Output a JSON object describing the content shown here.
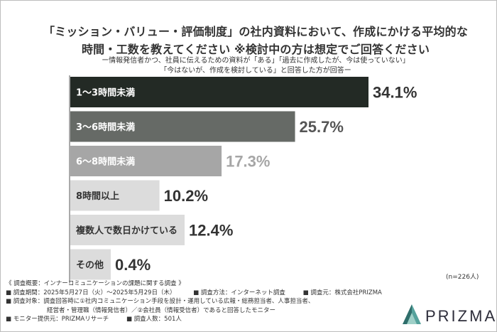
{
  "title": "「ミッション・バリュー・評価制度」の社内資料において、作成にかける平均的な\n時間・工数を教えてください ※検討中の方は想定でご回答ください",
  "subtitle": "ー情報発信者かつ、社員に伝えるための資料が「ある」「過去に作成したが、今は使っていない」\n「今はないが、作成を検討している」と回答した方が回答ー",
  "chart_data": {
    "type": "bar",
    "orientation": "horizontal",
    "categories": [
      "1〜3時間未満",
      "3〜6時間未満",
      "6〜8時間未満",
      "8時間以上",
      "複数人で数日かけている",
      "その他"
    ],
    "values": [
      34.1,
      25.7,
      17.3,
      10.2,
      12.4,
      0.4
    ],
    "value_labels": [
      "34.1%",
      "25.7%",
      "17.3%",
      "10.2%",
      "12.4%",
      "0.4%"
    ],
    "bar_colors": [
      "#232a25",
      "#666a66",
      "#a6a6a6",
      "#dcdcdc",
      "#dcdcdc",
      "#dcdcdc"
    ],
    "label_colors": [
      "#ffffff",
      "#ffffff",
      "#ffffff",
      "#333333",
      "#333333",
      "#333333"
    ],
    "value_colors": [
      "#333333",
      "#555555",
      "#a6a6a6",
      "#333333",
      "#333333",
      "#333333"
    ],
    "xlim": [
      0,
      34.1
    ]
  },
  "sample_size": "(n=226人)",
  "footer": {
    "overview": "《 調査概要：インナーコミュニケーションの課題に関する調査 》",
    "period": "■ 調査期間：2025年5月27日（火）〜2025年5月29日（木）",
    "method": "■ 調査方法：インターネット調査",
    "source": "■ 調査元：株式会社PRIZMA",
    "target_1": "■ 調査対象：調査回答時に①社内コミュニケーション手段を設計・運用している広報・総務担当者、人事担当者、",
    "target_2": "経営者・管理職（情報発信者）／②会社員（情報受信者）であると回答したモニター",
    "provider": "■ モニター提供元：PRIZMAリサーチ",
    "respondents": "■ 調査人数：501人"
  },
  "logo": {
    "text": "PRIZMA",
    "colors": [
      "#2f6e6b",
      "#55a29c",
      "#9fd0c8"
    ]
  }
}
